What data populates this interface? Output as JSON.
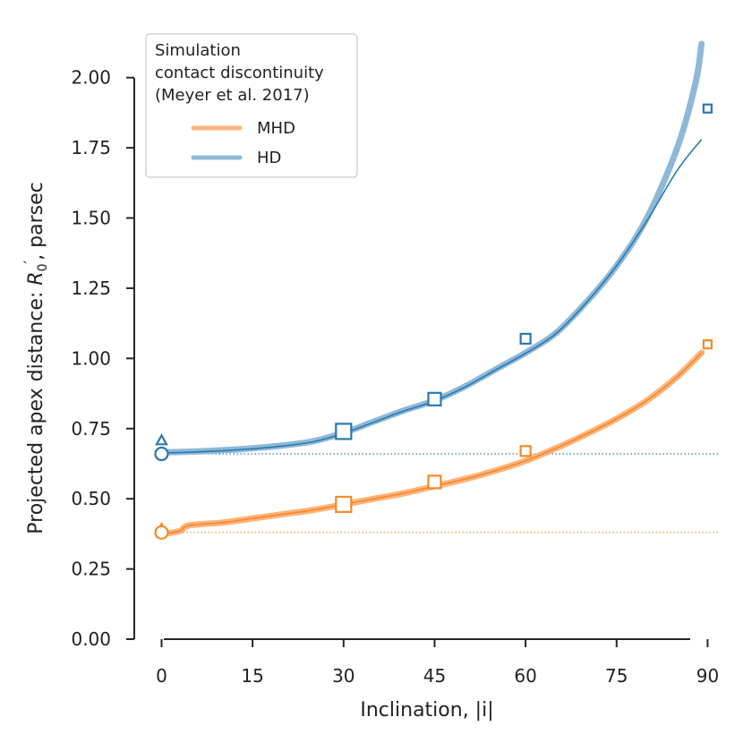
{
  "chart_data": {
    "type": "line",
    "xlabel": "Inclination, |i|",
    "ylabel_main": "Projected apex distance: ",
    "ylabel_symbol": "R",
    "ylabel_sub": "0",
    "ylabel_sup": "′",
    "ylabel_unit": ", parsec",
    "xlim": [
      -4.5,
      92
    ],
    "ylim": [
      0,
      2.2
    ],
    "xticks": [
      0,
      15,
      30,
      45,
      60,
      75,
      90
    ],
    "xtick_labels": [
      "0",
      "15",
      "30",
      "45",
      "60",
      "75",
      "90"
    ],
    "yticks": [
      0,
      0.25,
      0.5,
      0.75,
      1.0,
      1.25,
      1.5,
      1.75,
      2.0
    ],
    "ytick_labels": [
      "0.00",
      "0.25",
      "0.50",
      "0.75",
      "1.00",
      "1.25",
      "1.50",
      "1.75",
      "2.00"
    ],
    "legend": {
      "title_lines": [
        "Simulation",
        "contact discontinuity",
        "(Meyer et al. 2017)"
      ],
      "entries": [
        {
          "label": "MHD",
          "color": "#fdb27a"
        },
        {
          "label": "HD",
          "color": "#8fb8d8"
        }
      ]
    },
    "colors": {
      "hd_thick": "#8fb8d8",
      "hd_thin": "#2b78ad",
      "mhd_thick": "#fdb27a",
      "mhd_thin": "#f28a28"
    },
    "series": [
      {
        "name": "HD",
        "x": [
          0,
          5,
          10,
          15,
          20,
          25,
          30,
          35,
          40,
          45,
          50,
          55,
          60,
          65,
          70,
          75,
          80,
          85,
          88,
          89
        ],
        "values": [
          0.665,
          0.668,
          0.673,
          0.68,
          0.69,
          0.705,
          0.735,
          0.775,
          0.815,
          0.85,
          0.9,
          0.96,
          1.02,
          1.09,
          1.2,
          1.33,
          1.5,
          1.75,
          1.98,
          2.12
        ]
      },
      {
        "name": "HD model",
        "x": [
          0,
          5,
          10,
          15,
          20,
          25,
          30,
          35,
          40,
          45,
          50,
          55,
          60,
          65,
          70,
          75,
          80,
          85,
          89
        ],
        "values": [
          0.663,
          0.666,
          0.671,
          0.678,
          0.688,
          0.703,
          0.733,
          0.773,
          0.813,
          0.848,
          0.898,
          0.958,
          1.018,
          1.088,
          1.198,
          1.33,
          1.49,
          1.67,
          1.78
        ]
      },
      {
        "name": "MHD",
        "x": [
          0,
          3,
          4.5,
          10,
          15,
          20,
          25,
          30,
          35,
          40,
          45,
          50,
          55,
          60,
          65,
          70,
          75,
          80,
          85,
          89
        ],
        "values": [
          0.375,
          0.385,
          0.405,
          0.415,
          0.43,
          0.445,
          0.46,
          0.48,
          0.5,
          0.52,
          0.545,
          0.57,
          0.6,
          0.635,
          0.68,
          0.73,
          0.785,
          0.85,
          0.935,
          1.02
        ]
      }
    ],
    "reference_lines": [
      {
        "name": "HD",
        "y": 0.66
      },
      {
        "name": "MHD",
        "y": 0.38
      }
    ],
    "markers": [
      {
        "series": "HD",
        "shape": "triangle",
        "x": 0,
        "y": 0.71,
        "size": "small"
      },
      {
        "series": "HD",
        "shape": "circle",
        "x": 0,
        "y": 0.66,
        "size": "medium"
      },
      {
        "series": "HD",
        "shape": "square",
        "x": 30,
        "y": 0.74,
        "size": "large"
      },
      {
        "series": "HD",
        "shape": "square",
        "x": 45,
        "y": 0.855,
        "size": "medium"
      },
      {
        "series": "HD",
        "shape": "square",
        "x": 60,
        "y": 1.07,
        "size": "small"
      },
      {
        "series": "HD",
        "shape": "square",
        "x": 90,
        "y": 1.89,
        "size": "tiny"
      },
      {
        "series": "MHD",
        "shape": "triangle",
        "x": 0,
        "y": 0.395,
        "size": "small"
      },
      {
        "series": "MHD",
        "shape": "circle",
        "x": 0,
        "y": 0.38,
        "size": "medium"
      },
      {
        "series": "MHD",
        "shape": "square",
        "x": 30,
        "y": 0.48,
        "size": "large"
      },
      {
        "series": "MHD",
        "shape": "square",
        "x": 45,
        "y": 0.56,
        "size": "medium"
      },
      {
        "series": "MHD",
        "shape": "square",
        "x": 60,
        "y": 0.67,
        "size": "small"
      },
      {
        "series": "MHD",
        "shape": "square",
        "x": 90,
        "y": 1.05,
        "size": "tiny"
      }
    ]
  }
}
